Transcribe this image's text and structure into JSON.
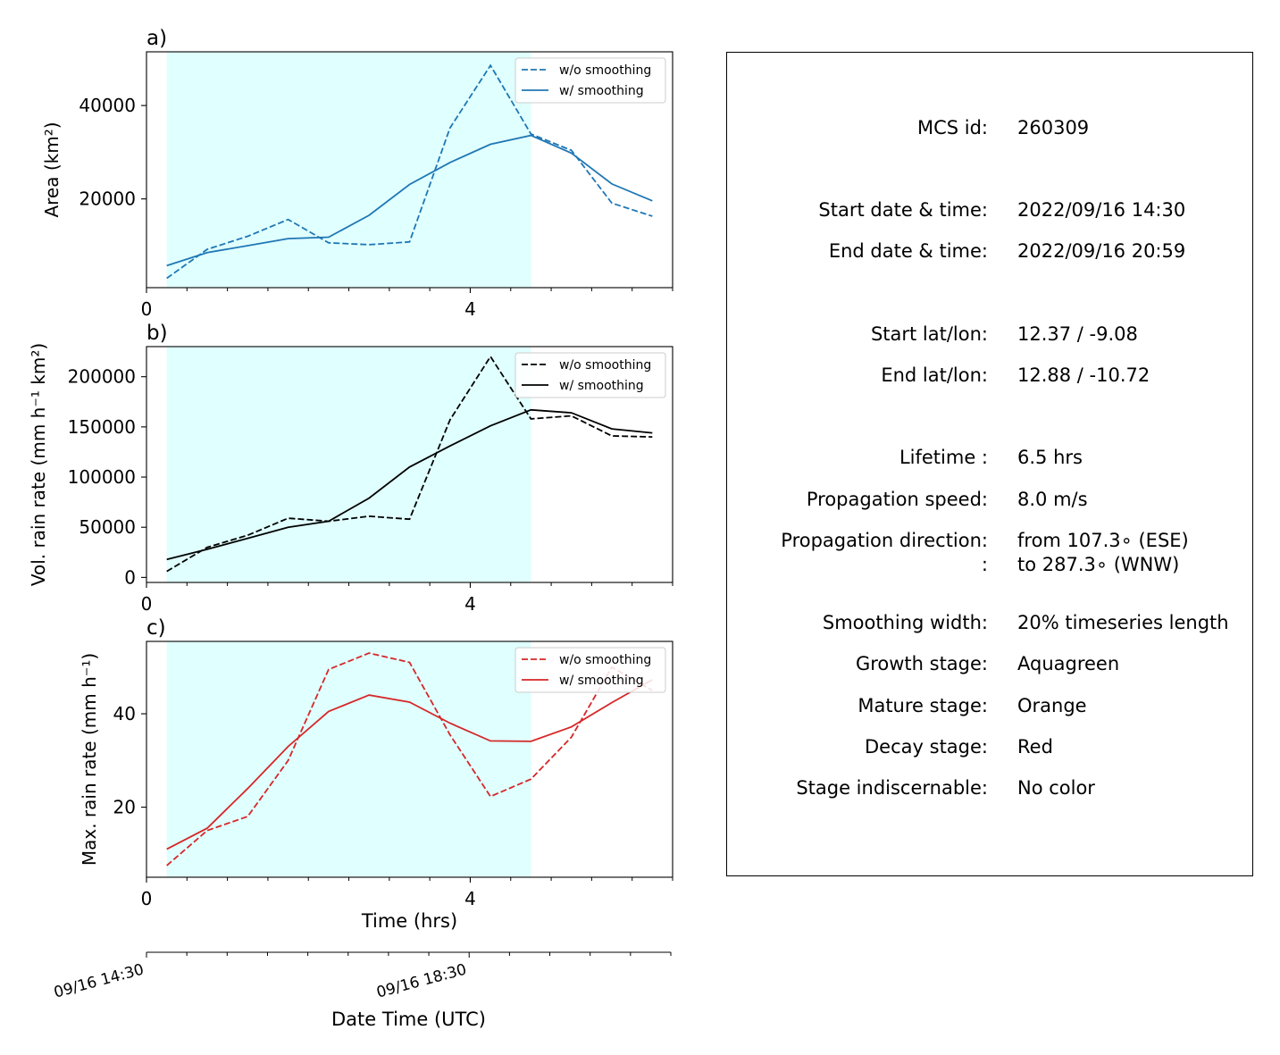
{
  "chart_data": [
    {
      "type": "line",
      "panel_label": "a)",
      "ylabel": "Area  (km²)",
      "ylim": [
        1000,
        51500
      ],
      "yticks": [
        20000,
        40000
      ],
      "xlim": [
        0,
        6.5
      ],
      "xticks": [
        0,
        4
      ],
      "shaded_region": {
        "x_start": 0.25,
        "x_end": 4.75,
        "color": "#e0ffff"
      },
      "color": "#1f77b4",
      "x": [
        0.25,
        0.75,
        1.25,
        1.75,
        2.25,
        2.75,
        3.25,
        3.75,
        4.25,
        4.75,
        5.25,
        5.75,
        6.25
      ],
      "series": [
        {
          "name": "w/o smoothing",
          "dashed": true,
          "values": [
            3000,
            9200,
            12000,
            15600,
            10600,
            10200,
            10800,
            35200,
            48600,
            33900,
            30400,
            19100,
            16300
          ]
        },
        {
          "name": "w/ smoothing",
          "dashed": false,
          "values": [
            5700,
            8500,
            10000,
            11500,
            11800,
            16500,
            23100,
            27800,
            31700,
            33600,
            29800,
            23200,
            19600
          ]
        }
      ],
      "legend": "top-right"
    },
    {
      "type": "line",
      "panel_label": "b)",
      "ylabel": "Vol. rain rate (mm h⁻¹ km²)",
      "ylim": [
        -5000,
        230000
      ],
      "yticks": [
        0,
        50000,
        100000,
        150000,
        200000
      ],
      "xlim": [
        0,
        6.5
      ],
      "xticks": [
        0,
        4
      ],
      "shaded_region": {
        "x_start": 0.25,
        "x_end": 4.75,
        "color": "#e0ffff"
      },
      "color": "#000000",
      "x": [
        0.25,
        0.75,
        1.25,
        1.75,
        2.25,
        2.75,
        3.25,
        3.75,
        4.25,
        4.75,
        5.25,
        5.75,
        6.25
      ],
      "series": [
        {
          "name": "w/o smoothing",
          "dashed": true,
          "values": [
            6000,
            30000,
            42000,
            59000,
            56000,
            61000,
            58000,
            157000,
            220000,
            158000,
            161000,
            141000,
            140000
          ]
        },
        {
          "name": "w/ smoothing",
          "dashed": false,
          "values": [
            18000,
            28000,
            39000,
            50000,
            56000,
            79000,
            110000,
            131000,
            151000,
            167000,
            164000,
            148000,
            144000
          ]
        }
      ],
      "legend": "top-right"
    },
    {
      "type": "line",
      "panel_label": "c)",
      "ylabel": "Max. rain rate  (mm h⁻¹)",
      "ylim": [
        5,
        55.5
      ],
      "yticks": [
        20,
        40
      ],
      "xlim": [
        0,
        6.5
      ],
      "xticks": [
        0,
        4
      ],
      "xlabel": "Time (hrs)",
      "shaded_region": {
        "x_start": 0.25,
        "x_end": 4.75,
        "color": "#e0ffff"
      },
      "color": "#d62728",
      "x": [
        0.25,
        0.75,
        1.25,
        1.75,
        2.25,
        2.75,
        3.25,
        3.75,
        4.25,
        4.75,
        5.25,
        5.75,
        6.25
      ],
      "series": [
        {
          "name": "w/o smoothing",
          "dashed": true,
          "values": [
            7.5,
            15,
            18,
            30,
            49.5,
            53,
            51,
            35.5,
            22.3,
            26,
            35,
            50,
            45
          ]
        },
        {
          "name": "w/ smoothing",
          "dashed": false,
          "values": [
            11,
            15.5,
            24,
            33,
            40.5,
            44,
            42.5,
            38,
            34.2,
            34.1,
            37.2,
            42.4,
            47.3
          ]
        }
      ],
      "legend": "top-right"
    }
  ],
  "datetime_axis": {
    "xlabel": "Date Time (UTC)",
    "ticks": [
      {
        "hours": 0,
        "label": "09/16 14:30"
      },
      {
        "hours": 4,
        "label": "09/16 18:30"
      }
    ],
    "minor_every_hours": 0.5
  },
  "info": {
    "rows": [
      {
        "label": "MCS id:",
        "value": "260309"
      },
      {
        "label": "Start date & time:",
        "value": "2022/09/16 14:30"
      },
      {
        "label": "End date & time:",
        "value": "2022/09/16 20:59"
      },
      {
        "label": "Start lat/lon:",
        "value": "12.37 / -9.08"
      },
      {
        "label": "End lat/lon:",
        "value": "12.88 / -10.72"
      },
      {
        "label": "Lifetime :",
        "value": "6.5 hrs"
      },
      {
        "label": "Propagation speed:",
        "value": "8.0 m/s"
      },
      {
        "label": "Propagation direction:",
        "value": "from 107.3∘ (ESE)"
      },
      {
        "label": ":",
        "value": "to   287.3∘ (WNW)"
      },
      {
        "label": "Smoothing width:",
        "value": "20% timeseries length"
      },
      {
        "label": "Growth stage:",
        "value": "Aquagreen"
      },
      {
        "label": "Mature stage:",
        "value": "Orange"
      },
      {
        "label": "Decay stage:",
        "value": "Red"
      },
      {
        "label": "Stage indiscernable:",
        "value": "No color"
      }
    ]
  }
}
